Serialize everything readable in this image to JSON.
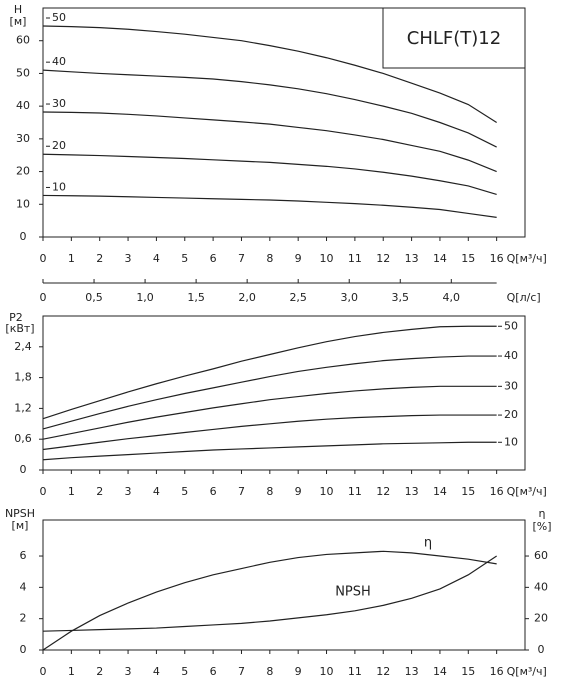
{
  "chart_data": [
    {
      "type": "line",
      "title": "CHLF(T)12",
      "ylabel": "H",
      "yunit": "[м]",
      "xlabel": "Q[м³/ч]",
      "x": [
        0,
        1,
        2,
        3,
        4,
        5,
        6,
        7,
        8,
        9,
        10,
        11,
        12,
        13,
        14,
        15,
        16
      ],
      "xlim": [
        0,
        17
      ],
      "xticks": [
        0,
        1,
        2,
        3,
        4,
        5,
        6,
        7,
        8,
        9,
        10,
        11,
        12,
        13,
        14,
        15,
        16
      ],
      "ylim": [
        0,
        70
      ],
      "yticks": [
        0,
        10,
        20,
        30,
        40,
        50,
        60
      ],
      "x2label": "Q[л/с]",
      "x2lim": [
        0,
        4.722
      ],
      "x2ticks": [
        0,
        {
          "value": 0.5,
          "label": "0,5"
        },
        {
          "value": 1.0,
          "label": "1,0"
        },
        {
          "value": 1.5,
          "label": "1,5"
        },
        {
          "value": 2.0,
          "label": "2,0"
        },
        {
          "value": 2.5,
          "label": "2,5"
        },
        {
          "value": 3.0,
          "label": "3,0"
        },
        {
          "value": 3.5,
          "label": "3,5"
        },
        {
          "value": 4.0,
          "label": "4,0"
        }
      ],
      "grid": false,
      "color": "#222222",
      "series": [
        {
          "name": "50",
          "values": [
            64.5,
            64.3,
            64,
            63.5,
            62.8,
            62,
            61,
            60,
            58.5,
            56.8,
            54.8,
            52.5,
            50,
            47,
            44,
            40.5,
            35
          ]
        },
        {
          "name": "40",
          "values": [
            51,
            50.5,
            50,
            49.6,
            49.2,
            48.8,
            48.3,
            47.5,
            46.5,
            45.3,
            43.8,
            42,
            40,
            37.8,
            35,
            31.8,
            27.5
          ]
        },
        {
          "name": "30",
          "values": [
            38.2,
            38.1,
            37.9,
            37.5,
            37,
            36.4,
            35.8,
            35.2,
            34.5,
            33.5,
            32.5,
            31.2,
            29.8,
            28,
            26.2,
            23.5,
            20
          ]
        },
        {
          "name": "20",
          "values": [
            25.3,
            25.1,
            24.9,
            24.6,
            24.3,
            24,
            23.6,
            23.2,
            22.8,
            22.2,
            21.6,
            20.8,
            19.8,
            18.6,
            17.2,
            15.6,
            13
          ]
        },
        {
          "name": "10",
          "values": [
            12.7,
            12.6,
            12.5,
            12.3,
            12.1,
            11.9,
            11.7,
            11.5,
            11.3,
            11,
            10.6,
            10.2,
            9.7,
            9.1,
            8.4,
            7.2,
            6
          ]
        }
      ]
    },
    {
      "type": "line",
      "ylabel": "P2",
      "yunit": "[кВт]",
      "xlabel": "Q[м³/ч]",
      "x": [
        0,
        1,
        2,
        3,
        4,
        5,
        6,
        7,
        8,
        9,
        10,
        11,
        12,
        13,
        14,
        15,
        16
      ],
      "xlim": [
        0,
        17
      ],
      "xticks": [
        0,
        1,
        2,
        3,
        4,
        5,
        6,
        7,
        8,
        9,
        10,
        11,
        12,
        13,
        14,
        15,
        16
      ],
      "ylim": [
        0,
        3
      ],
      "yticks": [
        0,
        {
          "value": 0.6,
          "label": "0,6"
        },
        {
          "value": 1.2,
          "label": "1,2"
        },
        {
          "value": 1.8,
          "label": "1,8"
        },
        {
          "value": 2.4,
          "label": "2,4"
        }
      ],
      "grid": false,
      "color": "#222222",
      "series": [
        {
          "name": "50",
          "values": [
            1.0,
            1.18,
            1.35,
            1.52,
            1.68,
            1.83,
            1.97,
            2.12,
            2.25,
            2.38,
            2.5,
            2.6,
            2.68,
            2.74,
            2.79,
            2.8,
            2.8
          ]
        },
        {
          "name": "40",
          "values": [
            0.8,
            0.95,
            1.1,
            1.24,
            1.37,
            1.49,
            1.6,
            1.71,
            1.82,
            1.92,
            2.0,
            2.07,
            2.13,
            2.17,
            2.2,
            2.22,
            2.22
          ]
        },
        {
          "name": "30",
          "values": [
            0.6,
            0.71,
            0.82,
            0.93,
            1.03,
            1.12,
            1.21,
            1.29,
            1.37,
            1.43,
            1.49,
            1.54,
            1.58,
            1.61,
            1.63,
            1.63,
            1.63
          ]
        },
        {
          "name": "20",
          "values": [
            0.4,
            0.47,
            0.54,
            0.61,
            0.67,
            0.73,
            0.79,
            0.85,
            0.9,
            0.95,
            0.99,
            1.02,
            1.04,
            1.06,
            1.07,
            1.07,
            1.07
          ]
        },
        {
          "name": "10",
          "values": [
            0.2,
            0.24,
            0.27,
            0.3,
            0.33,
            0.36,
            0.39,
            0.41,
            0.43,
            0.45,
            0.47,
            0.49,
            0.51,
            0.52,
            0.53,
            0.54,
            0.54
          ]
        }
      ]
    },
    {
      "type": "line",
      "ylabel": "NPSH",
      "yunit": "[м]",
      "y2label": "η",
      "y2unit": "[%]",
      "xlabel": "Q[м³/ч]",
      "x": [
        0,
        1,
        2,
        3,
        4,
        5,
        6,
        7,
        8,
        9,
        10,
        11,
        12,
        13,
        14,
        15,
        16
      ],
      "xlim": [
        0,
        17
      ],
      "xticks": [
        0,
        1,
        2,
        3,
        4,
        5,
        6,
        7,
        8,
        9,
        10,
        11,
        12,
        13,
        14,
        15,
        16
      ],
      "ylim": [
        0,
        8.3
      ],
      "yticks": [
        0,
        2,
        4,
        6
      ],
      "y2lim": [
        0,
        83
      ],
      "y2ticks": [
        0,
        20,
        40,
        60
      ],
      "grid": false,
      "color": "#222222",
      "series": [
        {
          "name": "NPSH",
          "values": [
            1.2,
            1.25,
            1.3,
            1.35,
            1.4,
            1.5,
            1.6,
            1.7,
            1.85,
            2.05,
            2.25,
            2.5,
            2.85,
            3.3,
            3.9,
            4.8,
            6.0
          ]
        },
        {
          "name": "η",
          "axis": "y2",
          "values": [
            0,
            12,
            22,
            30,
            37,
            43,
            48,
            52,
            56,
            59,
            61,
            62,
            63,
            62,
            60,
            58,
            55
          ]
        }
      ]
    }
  ]
}
